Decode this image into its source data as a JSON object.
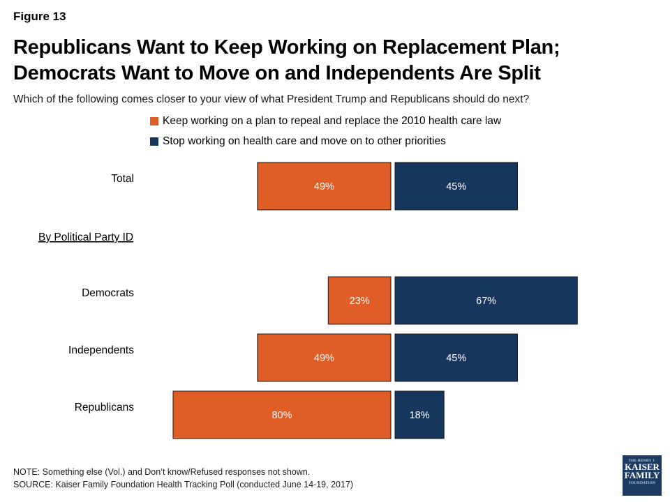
{
  "figure_label": "Figure 13",
  "title_line1": "Republicans Want to Keep Working on Replacement Plan;",
  "title_line2": "Democrats Want to Move on and Independents Are Split",
  "subtitle": "Which of the following comes closer to your view of what President Trump and Republicans should do next?",
  "section_label": "By Political Party ID",
  "note": "NOTE: Something else (Vol.) and Don’t know/Refused responses not shown.",
  "source": "SOURCE: Kaiser Family Foundation Health Tracking Poll (conducted June 14-19, 2017)",
  "logo": {
    "line1": "THE HENRY J.",
    "line2": "KAISER",
    "line3": "FAMILY",
    "line4": "FOUNDATION"
  },
  "colors": {
    "keep": "#e05d26",
    "stop": "#17365d"
  },
  "chart_data": {
    "type": "bar",
    "orientation": "horizontal-diverging",
    "categories": [
      "Total",
      "Democrats",
      "Independents",
      "Republicans"
    ],
    "series": [
      {
        "name": "Keep working on a plan to repeal and replace the 2010 health care law",
        "values": [
          49,
          23,
          49,
          80
        ]
      },
      {
        "name": "Stop working on health care and move on to other priorities",
        "values": [
          45,
          67,
          45,
          18
        ]
      }
    ],
    "value_labels": {
      "keep": [
        "49%",
        "23%",
        "49%",
        "80%"
      ],
      "stop": [
        "45%",
        "67%",
        "45%",
        "18%"
      ]
    },
    "legend_position": "top",
    "unit": "%"
  }
}
